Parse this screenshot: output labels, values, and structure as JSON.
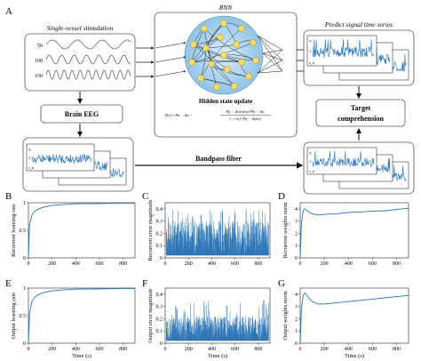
{
  "panels": {
    "A": "A",
    "B": "B",
    "C": "C",
    "D": "D",
    "E": "E",
    "F": "F",
    "G": "G"
  },
  "diagram": {
    "single_vessel_title": "Single-vessel stimulation",
    "stim_levels": [
      "50",
      "100",
      "150"
    ],
    "rnn_title": "RNN",
    "hidden_state_title": "Hidden state update",
    "formula_lhs": "P(t) = P(t − Δt) −",
    "formula_num": "P(t − Δt)r(t)r(t)ᵀP(t − Δt)",
    "formula_den": "1 + r(t)ᵀ P(t − Δt)r(t)",
    "predict_title": "Predict signal time series",
    "brain_eeg": "Brain EEG",
    "target_line1": "Target",
    "target_line2": "comprehension",
    "bandpass": "Bandpass filter",
    "mini_axis_labels": [
      "x₁",
      "x₂",
      "x_n"
    ]
  },
  "colors": {
    "signal": "#2a74b5",
    "node": "#f3dc6b",
    "node_stroke": "#b08a18",
    "rnn_bg": "#b6d8ec",
    "box_stroke": "#555555"
  },
  "chart_data": [
    {
      "id": "B",
      "type": "line",
      "ylabel": "Recurrent learning rate",
      "xlabel": "",
      "xlim": [
        0,
        900
      ],
      "ylim": [
        0,
        1
      ],
      "xticks": [
        "0",
        "200",
        "400",
        "600",
        "800"
      ],
      "yticks": [
        "0",
        "0.5",
        "1"
      ],
      "series": [
        {
          "x": [
            0,
            10,
            30,
            60,
            100,
            150,
            200,
            300,
            400,
            600,
            800,
            900
          ],
          "values": [
            0,
            0.6,
            0.78,
            0.86,
            0.9,
            0.93,
            0.95,
            0.97,
            0.98,
            0.985,
            0.99,
            0.99
          ]
        }
      ]
    },
    {
      "id": "C",
      "type": "line",
      "ylabel": "Recurrent error magnitude",
      "xlabel": "",
      "xlim": [
        0,
        900
      ],
      "ylim": [
        0,
        0.45
      ],
      "xticks": [
        "0",
        "200",
        "400",
        "600",
        "800"
      ],
      "yticks": [
        "0",
        "0.1",
        "0.2",
        "0.3",
        "0.4"
      ],
      "noise": {
        "low": 0.02,
        "typical_high": 0.3,
        "spike_high": 0.4
      }
    },
    {
      "id": "D",
      "type": "line",
      "ylabel": "Recurrent weights norm",
      "xlabel": "",
      "xlim": [
        0,
        900
      ],
      "ylim": [
        0,
        4.5
      ],
      "xticks": [
        "0",
        "200",
        "400",
        "600",
        "800"
      ],
      "yticks": [
        "0",
        "1",
        "2",
        "3",
        "4"
      ],
      "series": [
        {
          "x": [
            0,
            10,
            25,
            40,
            60,
            80,
            100,
            150,
            200,
            300,
            400,
            500,
            600,
            700,
            800,
            900
          ],
          "values": [
            0,
            2.8,
            3.9,
            4.0,
            3.85,
            3.7,
            3.6,
            3.5,
            3.55,
            3.6,
            3.7,
            3.75,
            3.8,
            3.85,
            3.95,
            4.05
          ]
        }
      ]
    },
    {
      "id": "E",
      "type": "line",
      "ylabel": "Output learning rate",
      "xlabel": "Time (s)",
      "xlim": [
        0,
        900
      ],
      "ylim": [
        0,
        1
      ],
      "xticks": [
        "0",
        "200",
        "400",
        "600",
        "800"
      ],
      "yticks": [
        "0",
        "0.5",
        "1"
      ],
      "series": [
        {
          "x": [
            0,
            10,
            30,
            60,
            100,
            150,
            200,
            300,
            400,
            600,
            800,
            900
          ],
          "values": [
            0,
            0.55,
            0.76,
            0.85,
            0.9,
            0.93,
            0.95,
            0.97,
            0.98,
            0.985,
            0.99,
            0.99
          ]
        }
      ]
    },
    {
      "id": "F",
      "type": "line",
      "ylabel": "Output error magnitude",
      "xlabel": "Time (s)",
      "xlim": [
        0,
        900
      ],
      "ylim": [
        0,
        0.45
      ],
      "xticks": [
        "0",
        "200",
        "400",
        "600",
        "800"
      ],
      "yticks": [
        "0",
        "0.1",
        "0.2",
        "0.3",
        "0.4"
      ],
      "noise": {
        "low": 0.02,
        "typical_high": 0.22,
        "spike_high": 0.35
      }
    },
    {
      "id": "G",
      "type": "line",
      "ylabel": "Output weights norm",
      "xlabel": "Time (s)",
      "xlim": [
        0,
        900
      ],
      "ylim": [
        0,
        4.5
      ],
      "xticks": [
        "0",
        "200",
        "400",
        "600",
        "800"
      ],
      "yticks": [
        "0",
        "1",
        "2",
        "3",
        "4"
      ],
      "series": [
        {
          "x": [
            0,
            10,
            25,
            40,
            60,
            80,
            100,
            150,
            200,
            300,
            400,
            500,
            600,
            700,
            800,
            900
          ],
          "values": [
            0,
            2.8,
            3.9,
            4.1,
            3.85,
            3.6,
            3.4,
            3.2,
            3.2,
            3.3,
            3.4,
            3.5,
            3.6,
            3.7,
            3.8,
            3.9
          ]
        }
      ]
    }
  ]
}
